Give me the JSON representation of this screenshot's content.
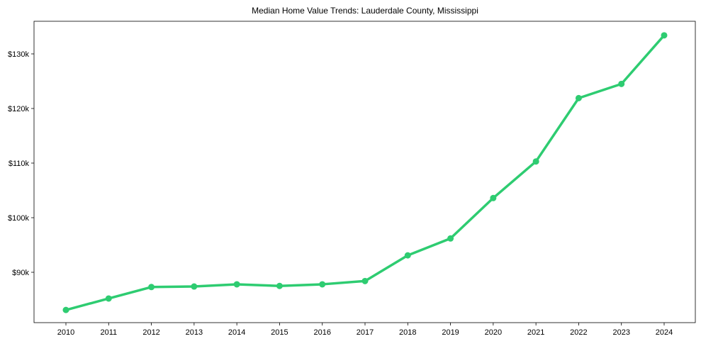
{
  "chart_data": {
    "type": "line",
    "title": "Median Home Value Trends: Lauderdale County, Mississippi",
    "xlabel": "",
    "ylabel": "",
    "x": [
      "2010",
      "2011",
      "2012",
      "2013",
      "2014",
      "2015",
      "2016",
      "2017",
      "2018",
      "2019",
      "2020",
      "2021",
      "2022",
      "2023",
      "2024"
    ],
    "series": [
      {
        "name": "Median Home Value",
        "color": "#2ecc71",
        "values": [
          83100,
          85200,
          87300,
          87400,
          87800,
          87500,
          87800,
          88400,
          93100,
          96200,
          103600,
          110300,
          121900,
          124500,
          133400
        ]
      }
    ],
    "yticks": [
      90000,
      100000,
      110000,
      120000,
      130000
    ],
    "ytick_labels": [
      "$90k",
      "$100k",
      "$110k",
      "$120k",
      "$130k"
    ],
    "ylim": [
      81200,
      136200
    ],
    "grid": false,
    "legend": "none"
  }
}
